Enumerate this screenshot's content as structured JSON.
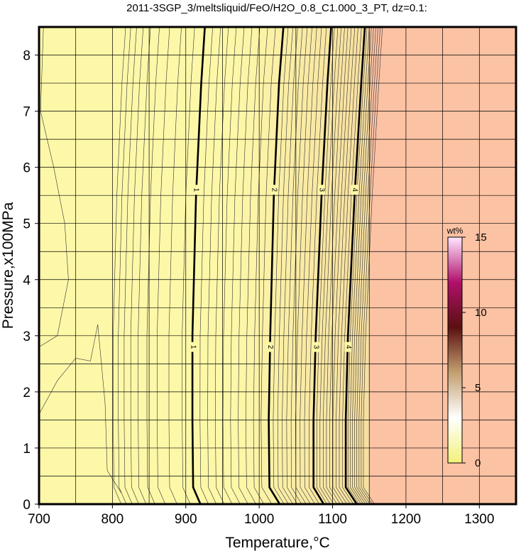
{
  "chart_data": {
    "type": "heatmap",
    "title": "2011-3SGP_3/meltsliquid/FeO/H2O_0.8_C1.000_3_PT, dz=0.1:",
    "xlabel": "Temperature,°C",
    "ylabel": "Pressure,x100MPa",
    "xlim": [
      700,
      1350
    ],
    "ylim": [
      0,
      8.5
    ],
    "x_ticks": [
      "700",
      "800",
      "900",
      "1000",
      "1100",
      "1200",
      "1300"
    ],
    "y_ticks": [
      "0",
      "1",
      "2",
      "3",
      "4",
      "5",
      "6",
      "7",
      "8"
    ],
    "grid": true,
    "colorbar": {
      "label": "wt%",
      "range": [
        0,
        15
      ],
      "ticks": [
        "0",
        "5",
        "10",
        "15"
      ],
      "position": "right"
    },
    "field_boundary_temperature": 1150,
    "major_contours": [
      {
        "level": "1",
        "points": [
          [
            920,
            0
          ],
          [
            910,
            0.3
          ],
          [
            909,
            1.5
          ],
          [
            909,
            3
          ],
          [
            914,
            5.5
          ],
          [
            921,
            7.5
          ],
          [
            926,
            8.5
          ]
        ]
      },
      {
        "level": "2",
        "points": [
          [
            1028,
            0
          ],
          [
            1014,
            0.3
          ],
          [
            1013,
            1.5
          ],
          [
            1015,
            3
          ],
          [
            1020,
            5.5
          ],
          [
            1027,
            7.5
          ],
          [
            1033,
            8.5
          ]
        ]
      },
      {
        "level": "3",
        "points": [
          [
            1088,
            0
          ],
          [
            1074,
            0.3
          ],
          [
            1074,
            1.5
          ],
          [
            1077,
            3
          ],
          [
            1085,
            5.5
          ],
          [
            1093,
            7.5
          ],
          [
            1098,
            8.5
          ]
        ]
      },
      {
        "level": "4",
        "points": [
          [
            1133,
            0
          ],
          [
            1118,
            0.3
          ],
          [
            1118,
            1.5
          ],
          [
            1121,
            3
          ],
          [
            1130,
            5.5
          ],
          [
            1139,
            7.5
          ],
          [
            1144,
            8.5
          ]
        ]
      }
    ],
    "contour_labels": [
      {
        "text": "1",
        "T": 914,
        "P": 5.6
      },
      {
        "text": "1",
        "T": 910,
        "P": 2.8
      },
      {
        "text": "2",
        "T": 1020,
        "P": 5.6
      },
      {
        "text": "2",
        "T": 1015,
        "P": 2.8
      },
      {
        "text": "3",
        "T": 1085,
        "P": 5.6
      },
      {
        "text": "3",
        "T": 1077,
        "P": 2.8
      },
      {
        "text": "4",
        "T": 1130,
        "P": 5.6
      },
      {
        "text": "4",
        "T": 1121,
        "P": 2.8
      }
    ],
    "colors": {
      "low": "#fdf8a8",
      "mid": "#f6dca0",
      "high": "#fbc2a4",
      "colorbar_stops": [
        "#f2f17a",
        "#ffffff",
        "#c4a070",
        "#5a1010",
        "#b0106a",
        "#ffe6ff"
      ]
    }
  }
}
